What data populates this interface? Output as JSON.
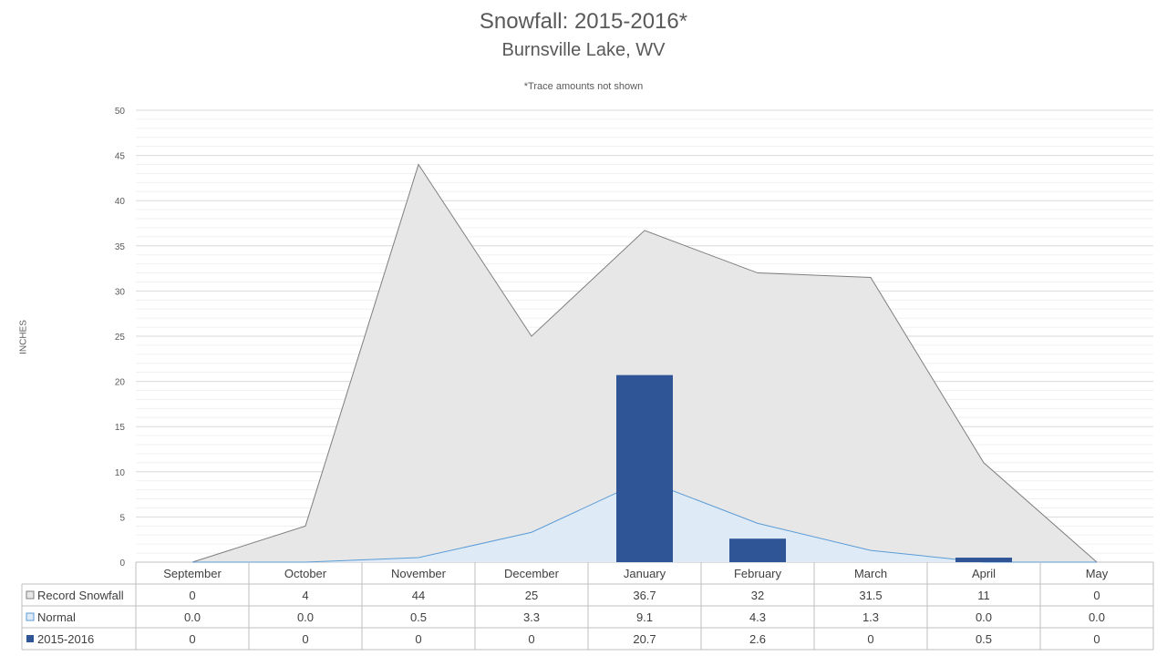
{
  "chart_data": {
    "type": "bar",
    "title": "Snowfall: 2015-2016*",
    "subtitle": "Burnsville Lake, WV",
    "note": "*Trace amounts not shown",
    "ylabel": "INCHES",
    "ylim": [
      0,
      50
    ],
    "yticks": [
      "0",
      "5",
      "10",
      "15",
      "20",
      "25",
      "30",
      "35",
      "40",
      "45",
      "50"
    ],
    "categories": [
      "September",
      "October",
      "November",
      "December",
      "January",
      "February",
      "March",
      "April",
      "May"
    ],
    "legend_placement": "data-table",
    "gridlines": true,
    "series": [
      {
        "name": "Record Snowfall",
        "kind": "area",
        "color": "#e7e7e7",
        "stroke": "#7f7f7f",
        "values": [
          0,
          4,
          44,
          25,
          36.7,
          32,
          31.5,
          11,
          0
        ],
        "labels": [
          "0",
          "4",
          "44",
          "25",
          "36.7",
          "32",
          "31.5",
          "11",
          "0"
        ]
      },
      {
        "name": "Normal",
        "kind": "area",
        "color": "#deebf7",
        "stroke": "#5b9bd5",
        "values": [
          0.0,
          0.0,
          0.5,
          3.3,
          9.1,
          4.3,
          1.3,
          0.0,
          0.0
        ],
        "labels": [
          "0.0",
          "0.0",
          "0.5",
          "3.3",
          "9.1",
          "4.3",
          "1.3",
          "0.0",
          "0.0"
        ]
      },
      {
        "name": "2015-2016",
        "kind": "bar",
        "color": "#2f5597",
        "values": [
          0,
          0,
          0,
          0,
          20.7,
          2.6,
          0,
          0.5,
          0
        ],
        "labels": [
          "0",
          "0",
          "0",
          "0",
          "20.7",
          "2.6",
          "0",
          "0.5",
          "0"
        ]
      }
    ]
  }
}
